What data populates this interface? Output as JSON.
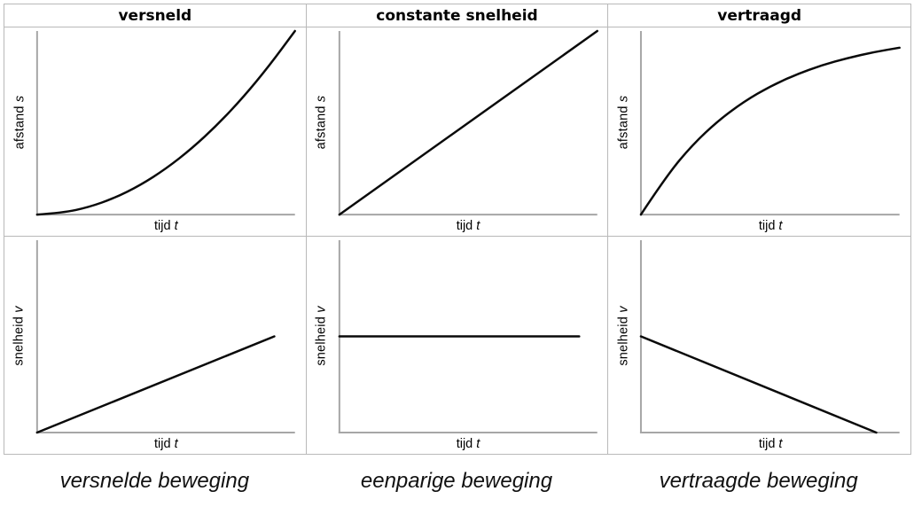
{
  "columns": [
    {
      "header": "versneld",
      "caption": "versnelde beweging"
    },
    {
      "header": "constante snelheid",
      "caption": "eenparige beweging"
    },
    {
      "header": "vertraagd",
      "caption": "vertraagde beweging"
    }
  ],
  "labels": {
    "afstand": "afstand",
    "snelheid": "snelheid",
    "tijd": "tijd",
    "s": "s",
    "v": "v",
    "t": "t"
  },
  "style": {
    "curve_color": "#0a0a0a",
    "curve_width": 2.5,
    "axis_color": "#a6a6a6",
    "axis_width": 2,
    "border_color": "#b9b9b9"
  },
  "chart_data": [
    {
      "id": "distance-versneld",
      "type": "line",
      "title": "versneld",
      "xlabel": "tijd t",
      "ylabel": "afstand s",
      "shape": "quadratic increasing (s ~ t²)",
      "axis_ranges": "qualitative, no ticks, no grid",
      "x": [
        0,
        0.1,
        0.2,
        0.3,
        0.4,
        0.5,
        0.6,
        0.7,
        0.8,
        0.9,
        1.0
      ],
      "y": [
        0,
        0.01,
        0.04,
        0.09,
        0.16,
        0.25,
        0.36,
        0.49,
        0.64,
        0.81,
        1.0
      ]
    },
    {
      "id": "distance-constante-snelheid",
      "type": "line",
      "title": "constante snelheid",
      "xlabel": "tijd t",
      "ylabel": "afstand s",
      "shape": "straight line through origin (s ~ t)",
      "axis_ranges": "qualitative, no ticks, no grid",
      "x": [
        0,
        1.0
      ],
      "y": [
        0,
        1.0
      ]
    },
    {
      "id": "distance-vertraagd",
      "type": "line",
      "title": "vertraagd",
      "xlabel": "tijd t",
      "ylabel": "afstand s",
      "shape": "rising curve levelling off (saturating)",
      "axis_ranges": "qualitative, no ticks, no grid",
      "x": [
        0,
        0.1,
        0.2,
        0.3,
        0.4,
        0.5,
        0.6,
        0.7,
        0.8,
        0.9,
        1.0
      ],
      "y": [
        0,
        0.213,
        0.381,
        0.513,
        0.617,
        0.699,
        0.763,
        0.814,
        0.853,
        0.885,
        0.909
      ]
    },
    {
      "id": "velocity-versneld",
      "type": "line",
      "title": "versneld",
      "xlabel": "tijd t",
      "ylabel": "snelheid v",
      "shape": "straight line rising from origin (v ~ t)",
      "axis_ranges": "qualitative, no ticks, no grid",
      "x": [
        0,
        0.92
      ],
      "y": [
        0,
        0.5
      ]
    },
    {
      "id": "velocity-constante-snelheid",
      "type": "line",
      "title": "constante snelheid",
      "xlabel": "tijd t",
      "ylabel": "snelheid v",
      "shape": "horizontal line (v constant)",
      "axis_ranges": "qualitative, no ticks, no grid",
      "x": [
        0,
        0.93
      ],
      "y": [
        0.5,
        0.5
      ]
    },
    {
      "id": "velocity-vertraagd",
      "type": "line",
      "title": "vertraagd",
      "xlabel": "tijd t",
      "ylabel": "snelheid v",
      "shape": "straight line decreasing to zero",
      "axis_ranges": "qualitative, no ticks, no grid",
      "x": [
        0,
        0.91
      ],
      "y": [
        0.5,
        0
      ]
    }
  ]
}
